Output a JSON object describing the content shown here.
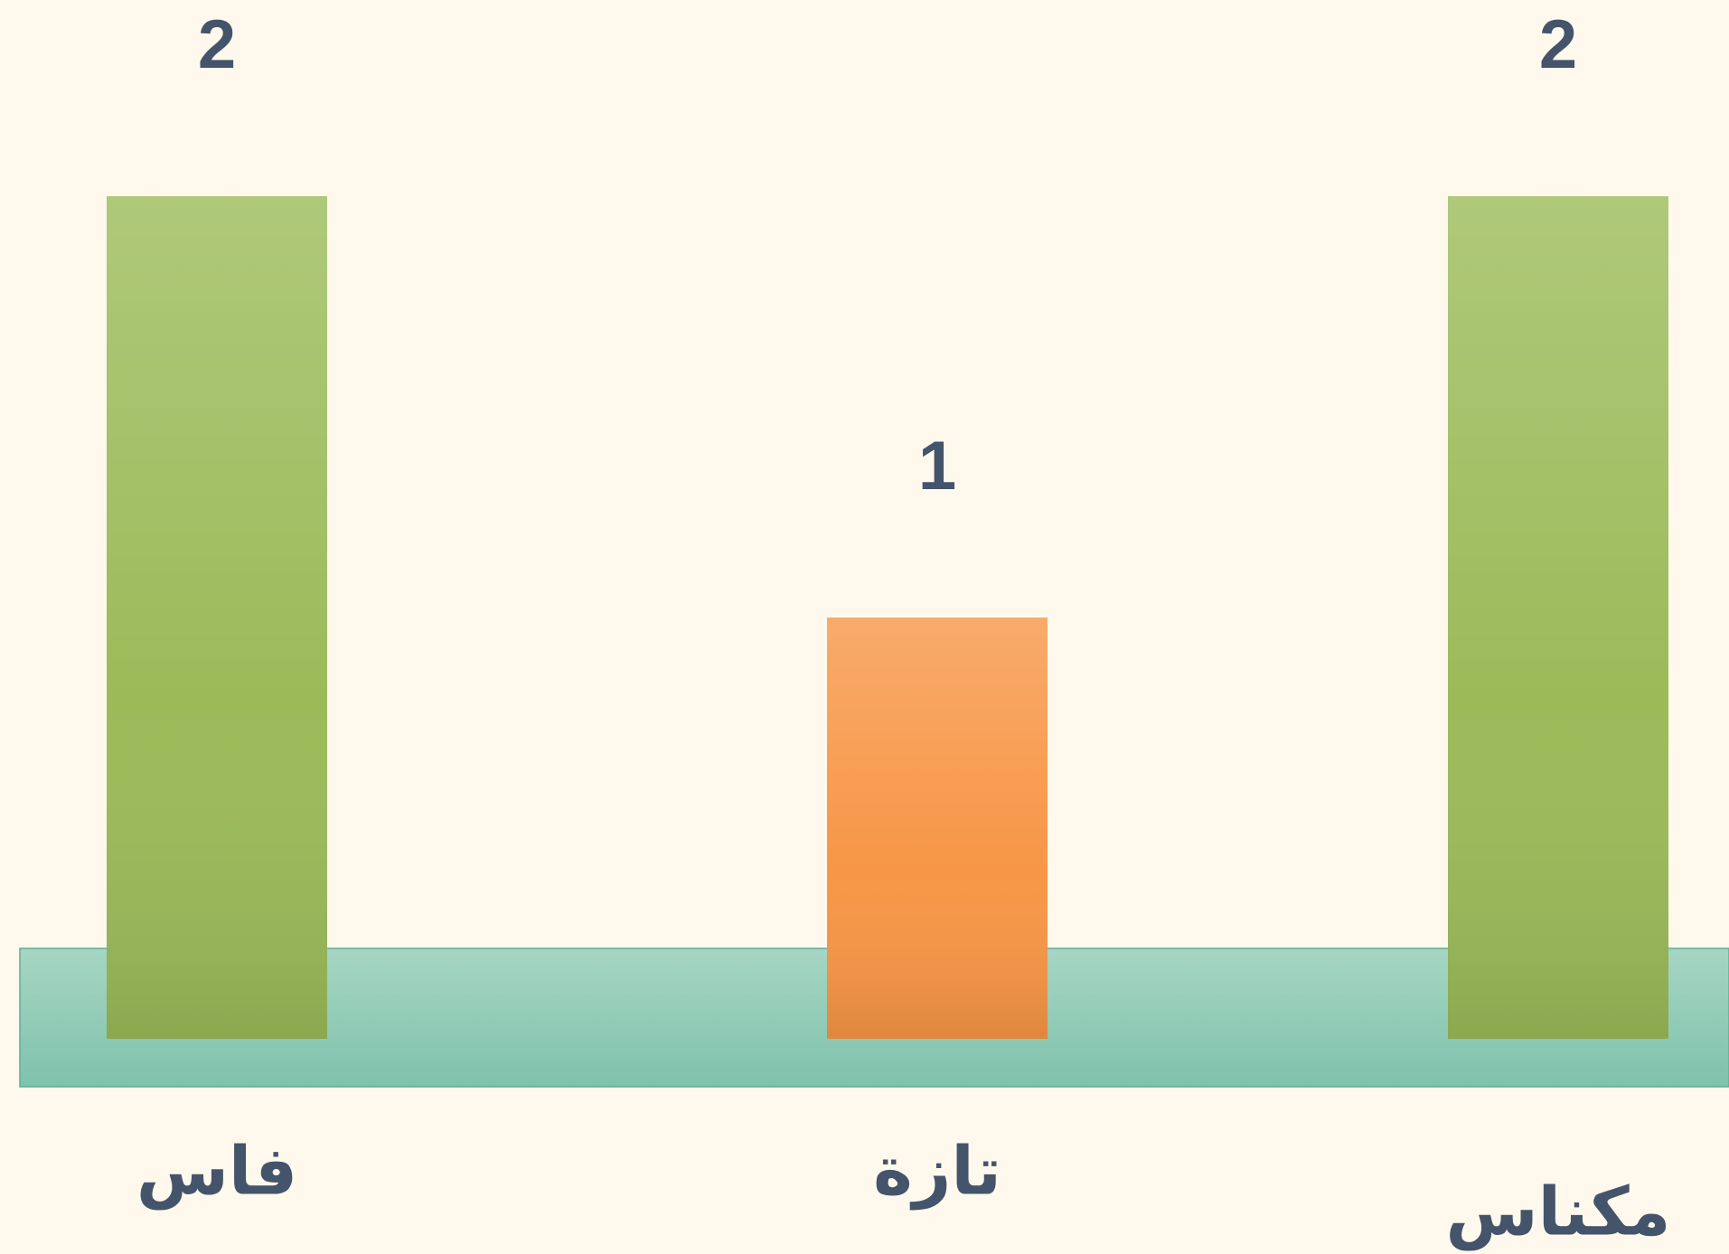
{
  "chart_data": {
    "type": "bar",
    "categories": [
      "فاس",
      "تازة",
      "مكناس"
    ],
    "values": [
      2,
      1,
      2
    ],
    "colors": [
      "#9bbb59",
      "#f79646",
      "#9bbb59"
    ],
    "ylim": [
      0,
      2
    ]
  }
}
